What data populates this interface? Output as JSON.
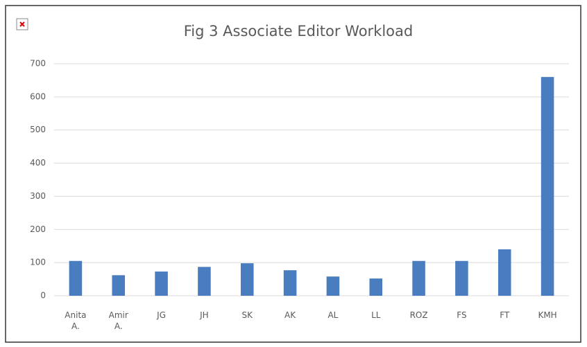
{
  "chart_data": {
    "type": "bar",
    "title": "Fig 3 Associate Editor Workload",
    "categories": [
      "Anita A.",
      "Amir A.",
      "JG",
      "JH",
      "SK",
      "AK",
      "AL",
      "LL",
      "ROZ",
      "FS",
      "FT",
      "KMH"
    ],
    "values": [
      105,
      62,
      73,
      87,
      98,
      77,
      58,
      52,
      105,
      105,
      140,
      660
    ],
    "color": "#4a7dbf",
    "ylim": [
      0,
      700
    ],
    "yticks": [
      0,
      100,
      200,
      300,
      400,
      500,
      600,
      700
    ],
    "grid": true
  }
}
